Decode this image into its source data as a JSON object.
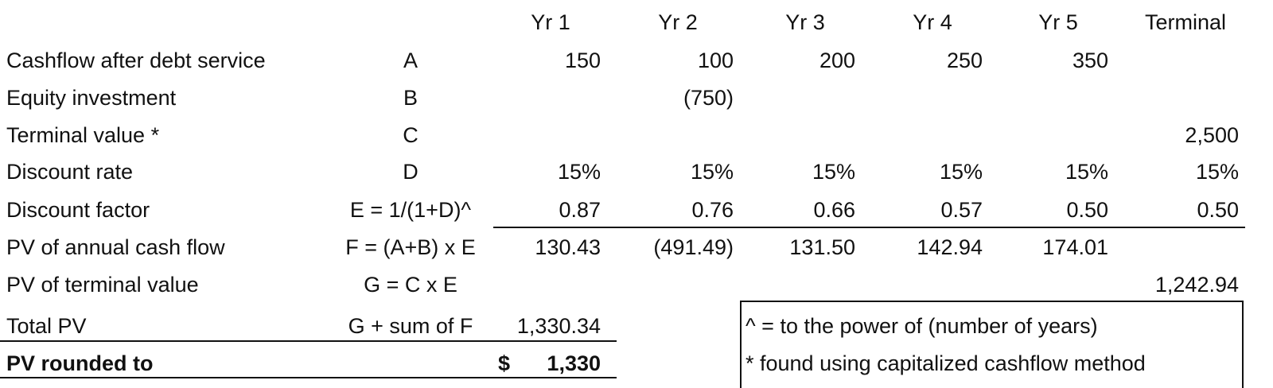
{
  "header": {
    "columns": [
      "Yr 1",
      "Yr 2",
      "Yr 3",
      "Yr 4",
      "Yr 5",
      "Terminal"
    ]
  },
  "table": {
    "rows": [
      {
        "label": "Cashflow after debt service",
        "ref": "A",
        "cells": [
          "150",
          "100",
          "200",
          "250",
          "350",
          null
        ]
      },
      {
        "label": "Equity investment",
        "ref": "B",
        "cells": [
          null,
          "(750)",
          null,
          null,
          null,
          null
        ]
      },
      {
        "label": "Terminal value *",
        "ref": "C",
        "cells": [
          null,
          null,
          null,
          null,
          null,
          "2,500"
        ]
      },
      {
        "label": "Discount rate",
        "ref": "D",
        "cells": [
          "15%",
          "15%",
          "15%",
          "15%",
          "15%",
          "15%"
        ]
      },
      {
        "label": "Discount factor",
        "ref": "E = 1/(1+D)^",
        "cells": [
          "0.87",
          "0.76",
          "0.66",
          "0.57",
          "0.50",
          "0.50"
        ]
      },
      {
        "label": "PV of annual cash flow",
        "ref": "F = (A+B) x E",
        "cells": [
          "130.43",
          "(491.49)",
          "131.50",
          "142.94",
          "174.01",
          null
        ]
      },
      {
        "label": "PV of terminal value",
        "ref": "G = C x E",
        "cells": [
          null,
          null,
          null,
          null,
          null,
          "1,242.94"
        ]
      },
      {
        "label": "Total PV",
        "ref": "G + sum of F",
        "cells": [
          "1,330.34",
          null,
          null,
          null,
          null,
          null
        ]
      }
    ]
  },
  "rounded": {
    "label": "PV rounded to",
    "currency": "$",
    "value": "1,330"
  },
  "notes": [
    "^ = to the power of (number of years)",
    "*  found using capitalized cashflow method"
  ]
}
